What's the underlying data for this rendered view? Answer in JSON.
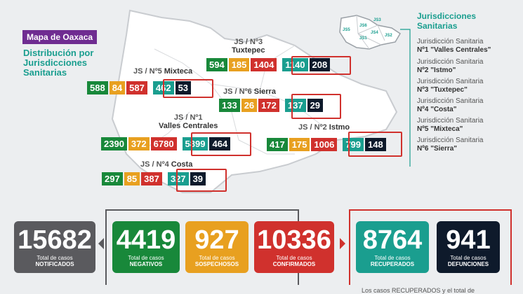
{
  "header": {
    "tag": "Mapa de Oaxaca",
    "subtitle_lines": [
      "Distribución por",
      "Jurisdicciones",
      "Sanitarias"
    ]
  },
  "legend": {
    "title_lines": [
      "Jurisdicciones",
      "Sanitarias"
    ],
    "items": [
      {
        "line1": "Jurisdicción Sanitaria",
        "line2": "Nº1 \"Valles Centrales\""
      },
      {
        "line1": "Jurisdicción Sanitaria",
        "line2": "Nº2 \"Istmo\""
      },
      {
        "line1": "Jurisdicción Sanitaria",
        "line2": "Nº3 \"Tuxtepec\""
      },
      {
        "line1": "Jurisdicción Sanitaria",
        "line2": "Nº4 \"Costa\""
      },
      {
        "line1": "Jurisdicción Sanitaria",
        "line2": "Nº5 \"Mixteca\""
      },
      {
        "line1": "Jurisdicción Sanitaria",
        "line2": "Nº6 \"Sierra\""
      }
    ],
    "minimap_labels": [
      "JS5",
      "JS6",
      "JS3",
      "JS1",
      "JS2",
      "JS4"
    ]
  },
  "jurisdictions": {
    "js3": {
      "prefix": "JS / Nº3",
      "name": "Tuxtepec",
      "values": [
        "594",
        "185",
        "1404",
        "1140",
        "208"
      ]
    },
    "js5": {
      "prefix": "JS / Nº5",
      "name": "Mixteca",
      "values": [
        "588",
        "84",
        "587",
        "462",
        "53"
      ]
    },
    "js6": {
      "prefix": "JS / Nº6",
      "name": "Sierra",
      "values": [
        "133",
        "26",
        "172",
        "137",
        "29"
      ]
    },
    "js1": {
      "prefix": "JS / Nº1",
      "name": "Valles Centrales",
      "values": [
        "2390",
        "372",
        "6780",
        "5899",
        "464"
      ]
    },
    "js2": {
      "prefix": "JS / Nº2",
      "name": "Istmo",
      "values": [
        "417",
        "175",
        "1006",
        "799",
        "148"
      ]
    },
    "js4": {
      "prefix": "JS / Nº4",
      "name": "Costa",
      "values": [
        "297",
        "85",
        "387",
        "327",
        "39"
      ]
    }
  },
  "totals": [
    {
      "value": "15682",
      "line1": "Total de casos",
      "line2": "NOTIFICADOS",
      "color": "#5a5a5e"
    },
    {
      "value": "4419",
      "line1": "Total de casos",
      "line2": "NEGATIVOS",
      "color": "#18883a"
    },
    {
      "value": "927",
      "line1": "Total de casos",
      "line2": "SOSPECHOSOS",
      "color": "#e8a020"
    },
    {
      "value": "10336",
      "line1": "Total de casos",
      "line2": "CONFIRMADOS",
      "color": "#d0312d"
    },
    {
      "value": "8764",
      "line1": "Total de casos",
      "line2": "RECUPERADOS",
      "color": "#1a9e8f"
    },
    {
      "value": "941",
      "line1": "Total de casos",
      "line2": "DEFUNCIONES",
      "color": "#0e1a2b"
    }
  ],
  "footer": {
    "text": "Los casos RECUPERADOS y el total de"
  },
  "colors": {
    "negative": "#18883a",
    "suspect": "#e8a020",
    "confirmed": "#d0312d",
    "recovered": "#1a9e8f",
    "deaths": "#0e1a2b",
    "accent": "#6f2c91"
  }
}
